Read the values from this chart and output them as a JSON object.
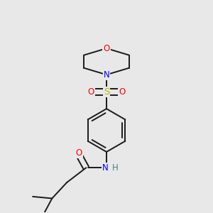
{
  "background_color": "#e8e8e8",
  "bond_color": "#1a1a1a",
  "atom_colors": {
    "O": "#ff0000",
    "N": "#0000ff",
    "S": "#b8b800",
    "H": "#4a8080",
    "C": "#1a1a1a"
  },
  "figsize": [
    3.0,
    3.0
  ],
  "dpi": 100
}
